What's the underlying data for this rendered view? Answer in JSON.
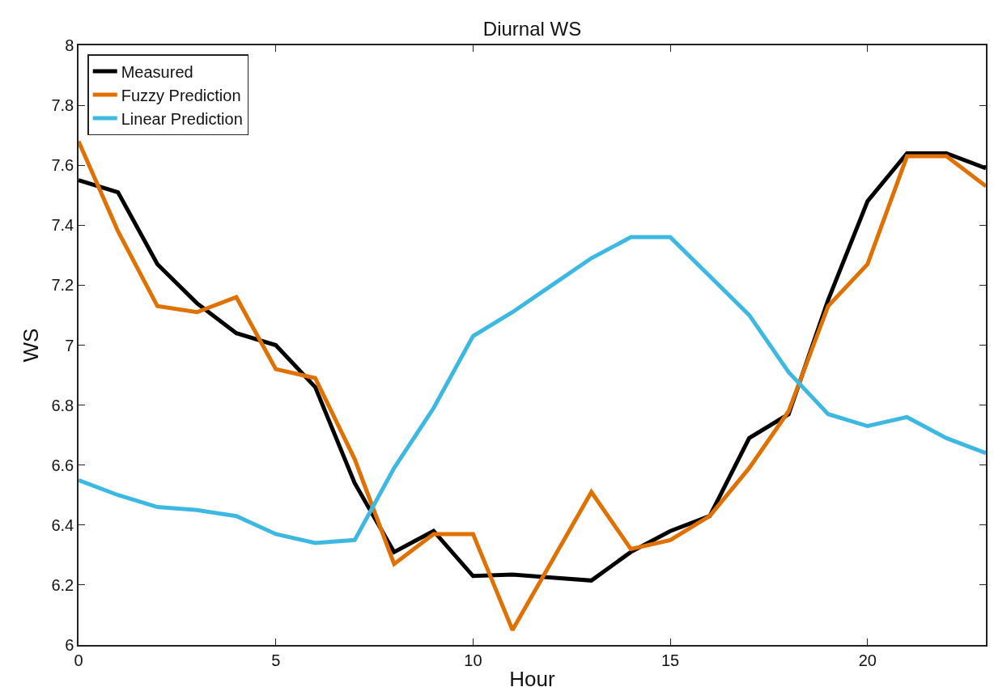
{
  "chart_data": {
    "type": "line",
    "title": "Diurnal WS",
    "xlabel": "Hour",
    "ylabel": "WS",
    "x": [
      0,
      1,
      2,
      3,
      4,
      5,
      6,
      7,
      8,
      9,
      10,
      11,
      12,
      13,
      14,
      15,
      16,
      17,
      18,
      19,
      20,
      21,
      22,
      23
    ],
    "series": [
      {
        "name": "Measured",
        "color": "#000000",
        "values": [
          7.55,
          7.51,
          7.27,
          7.14,
          7.04,
          7.0,
          6.86,
          6.54,
          6.31,
          6.38,
          6.23,
          6.235,
          6.225,
          6.215,
          6.31,
          6.38,
          6.43,
          6.69,
          6.77,
          7.15,
          7.48,
          7.64,
          7.64,
          7.59
        ]
      },
      {
        "name": "Fuzzy Prediction",
        "color": "#e07000",
        "values": [
          7.68,
          7.38,
          7.13,
          7.11,
          7.16,
          6.92,
          6.89,
          6.62,
          6.27,
          6.37,
          6.37,
          6.05,
          6.28,
          6.51,
          6.32,
          6.35,
          6.43,
          6.59,
          6.78,
          7.13,
          7.27,
          7.63,
          7.63,
          7.53
        ]
      },
      {
        "name": "Linear Prediction",
        "color": "#3db8e3",
        "values": [
          6.55,
          6.5,
          6.46,
          6.45,
          6.43,
          6.37,
          6.34,
          6.35,
          6.59,
          6.79,
          7.03,
          7.11,
          7.2,
          7.29,
          7.36,
          7.36,
          7.23,
          7.1,
          6.91,
          6.77,
          6.73,
          6.76,
          6.69,
          6.64
        ]
      }
    ],
    "xlim": [
      0,
      23
    ],
    "xticks": [
      0,
      5,
      10,
      15,
      20
    ],
    "ylim": [
      6,
      8
    ],
    "yticks": [
      6,
      6.2,
      6.4,
      6.6,
      6.8,
      7,
      7.2,
      7.4,
      7.6,
      7.8,
      8
    ],
    "legend": "top left",
    "marker": "none",
    "line_style": "solid"
  }
}
